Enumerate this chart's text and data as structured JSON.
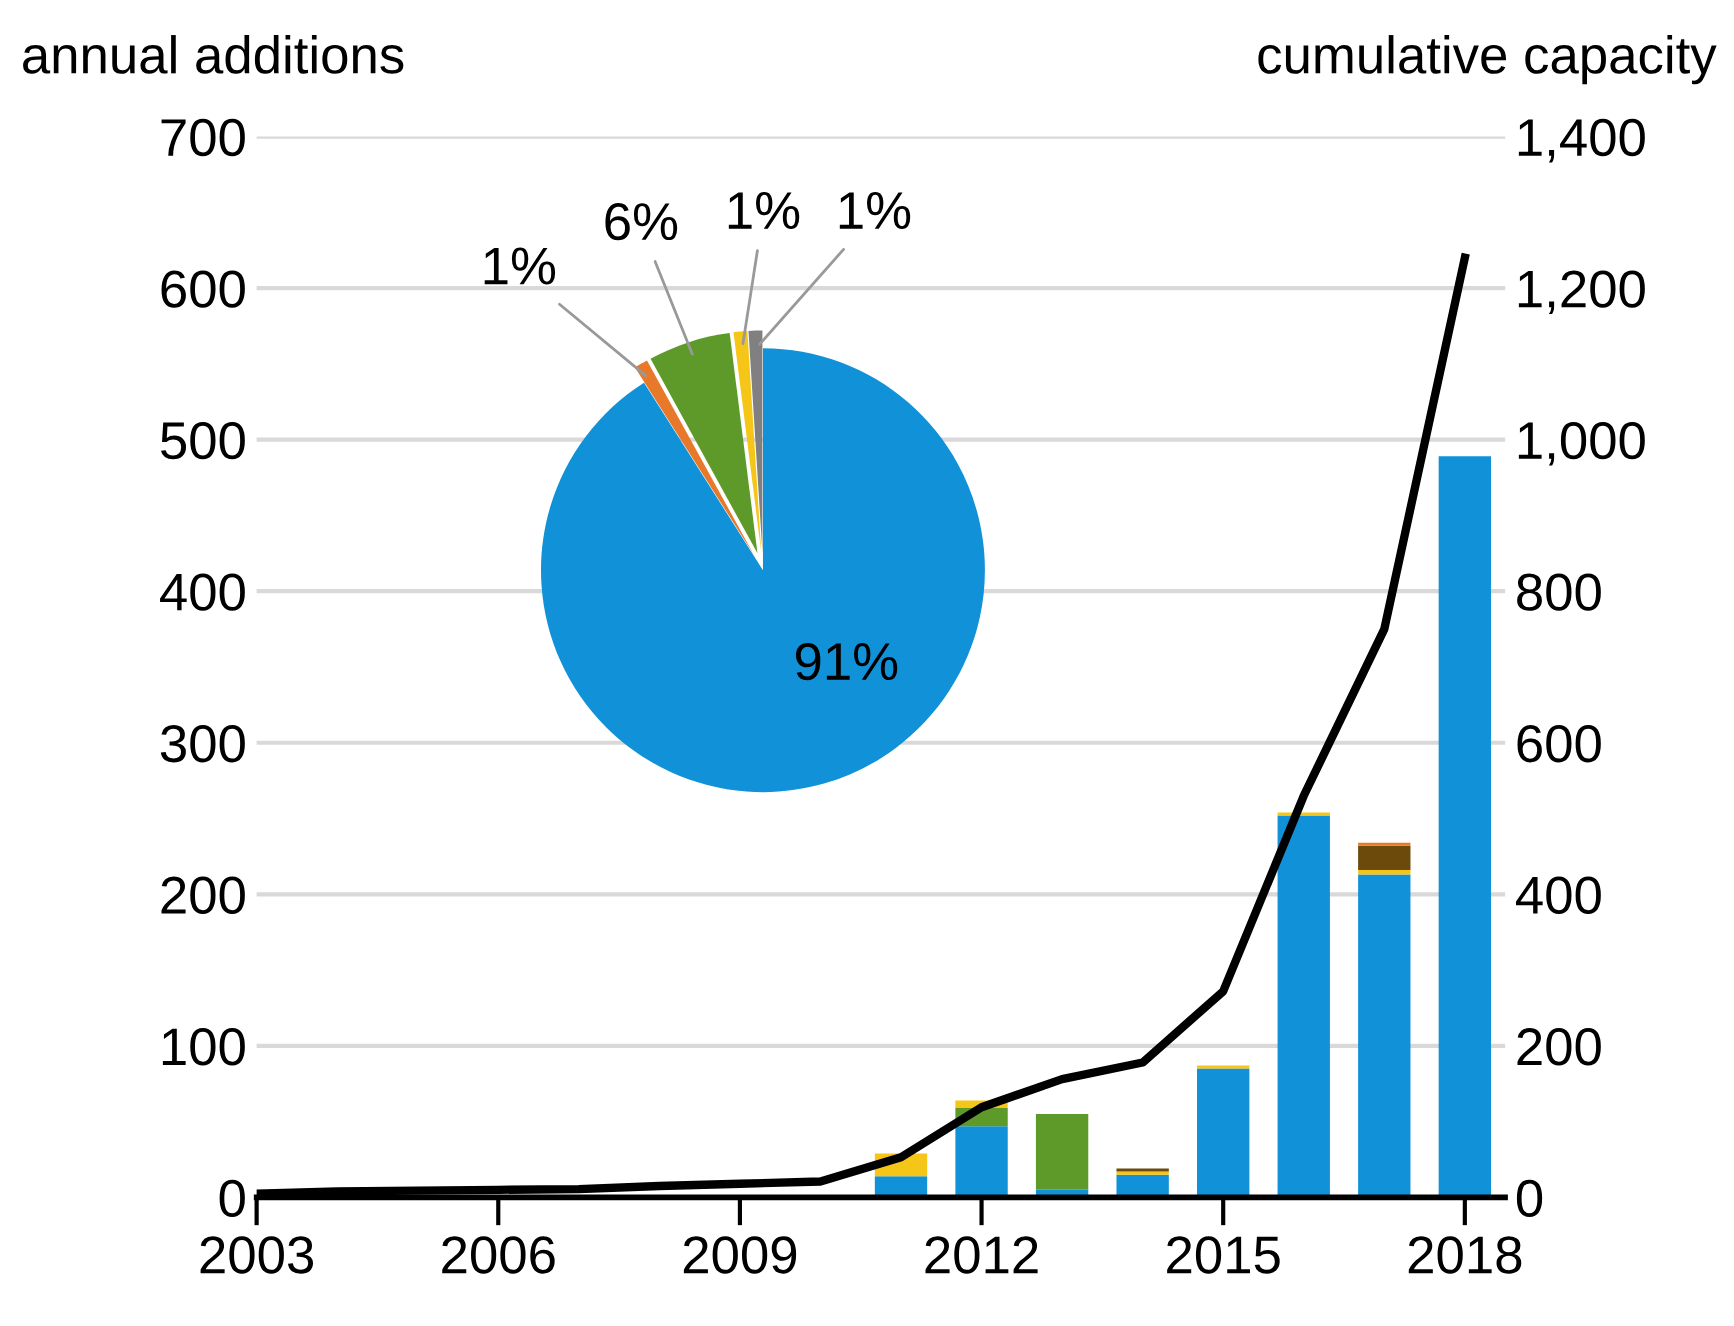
{
  "chart_data": [
    {
      "type": "bar",
      "stacked": true,
      "ylabel": "annual additions",
      "y2label": "cumulative capacity",
      "x": [
        2003,
        2004,
        2005,
        2006,
        2007,
        2008,
        2009,
        2010,
        2011,
        2012,
        2013,
        2014,
        2015,
        2016,
        2017,
        2018
      ],
      "series": [
        {
          "color": "#1192d8",
          "values": [
            0,
            0,
            0,
            0,
            0,
            0,
            0,
            0,
            14,
            47,
            5,
            15,
            85,
            252,
            213,
            489
          ]
        },
        {
          "color": "#5e9a2a",
          "values": [
            0,
            0,
            0,
            0,
            0,
            0,
            null,
            null,
            0,
            12,
            50,
            0,
            0,
            0,
            0,
            0
          ]
        },
        {
          "color": "#f5c518",
          "values": [
            0,
            0,
            0,
            0,
            0,
            0,
            0,
            0,
            15,
            5,
            0,
            2,
            2,
            2,
            3,
            0
          ]
        },
        {
          "color": "#6b4a0c",
          "values": [
            0,
            0,
            0,
            0,
            0,
            0,
            0,
            0,
            0,
            0,
            0,
            2,
            0,
            0,
            16,
            0
          ]
        },
        {
          "color": "#e8782a",
          "values": [
            null,
            0,
            0,
            0,
            0,
            0,
            0,
            0,
            0,
            0,
            0,
            0,
            0,
            0,
            2,
            0
          ]
        },
        {
          "type": "line",
          "axis": "y2",
          "color": "#000000",
          "values": [
            5,
            8,
            9,
            10,
            11,
            15,
            18,
            21,
            53,
            119,
            156,
            178,
            272,
            530,
            750,
            1240
          ]
        }
      ],
      "xlim": [
        2003,
        2018.5
      ],
      "xticks": [
        2003,
        2006,
        2009,
        2012,
        2015,
        2018
      ],
      "ylim": [
        0,
        700
      ],
      "yticks": [
        0,
        100,
        200,
        300,
        400,
        500,
        600,
        700
      ],
      "y2lim": [
        0,
        1400
      ],
      "y2ticks": [
        0,
        {
          "value": 200,
          "label": "200"
        },
        {
          "value": 400,
          "label": "400"
        },
        {
          "value": 600,
          "label": "600"
        },
        {
          "value": 800,
          "label": "800"
        },
        {
          "value": 1000,
          "label": "1,000"
        },
        {
          "value": 1200,
          "label": "1,200"
        },
        {
          "value": 1400,
          "label": "1,400"
        }
      ],
      "grid": "y"
    },
    {
      "type": "pie",
      "categories": [
        null,
        null,
        null,
        null,
        null
      ],
      "values": [
        91,
        1,
        6,
        1,
        1
      ],
      "colors": [
        "#1192d8",
        "#e8782a",
        "#5e9a2a",
        "#f5c518",
        "#808080"
      ],
      "value_labels": [
        "91%",
        "1%",
        "6%",
        "1%",
        "1%"
      ]
    }
  ]
}
